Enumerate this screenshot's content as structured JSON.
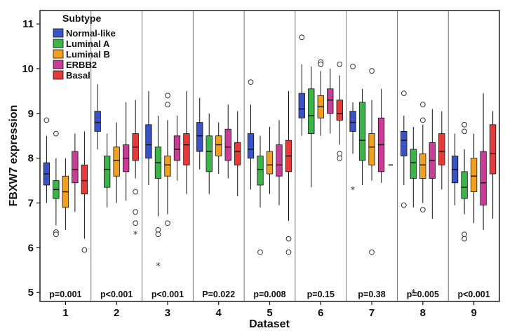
{
  "chart_data": {
    "type": "boxplot",
    "xlabel": "Dataset",
    "ylabel": "FBXW7 expression",
    "ylim": [
      4.8,
      11.3
    ],
    "yticks": [
      "5",
      "6",
      "7",
      "8",
      "9",
      "10",
      "11"
    ],
    "grid": false,
    "legend": {
      "title": "Subtype",
      "placement": "top-left",
      "entries": [
        "Normal-like",
        "Luminal A",
        "Luminal B",
        "ERBB2",
        "Basal"
      ]
    },
    "colors": [
      "#3b52c4",
      "#3db44a",
      "#f0a020",
      "#c83e96",
      "#e63a3a"
    ],
    "datasets": [
      {
        "label": "1",
        "pvalue": "p=0.001",
        "boxes": [
          {
            "q1": 7.4,
            "median": 7.65,
            "q3": 7.9,
            "wlo": 7.0,
            "whi": 8.5,
            "outliers": [
              8.85
            ],
            "extremes": []
          },
          {
            "q1": 7.1,
            "median": 7.3,
            "q3": 7.5,
            "wlo": 6.5,
            "whi": 8.0,
            "outliers": [
              8.55,
              6.35,
              6.3
            ],
            "extremes": []
          },
          {
            "q1": 6.9,
            "median": 7.25,
            "q3": 7.6,
            "wlo": 6.4,
            "whi": 8.0,
            "outliers": [],
            "extremes": []
          },
          {
            "q1": 7.45,
            "median": 7.75,
            "q3": 8.15,
            "wlo": 6.8,
            "whi": 8.55,
            "outliers": [],
            "extremes": []
          },
          {
            "q1": 7.2,
            "median": 7.5,
            "q3": 7.85,
            "wlo": 6.2,
            "whi": 8.6,
            "outliers": [
              5.95
            ],
            "extremes": []
          }
        ]
      },
      {
        "label": "2",
        "pvalue": "p<0.001",
        "boxes": [
          {
            "q1": 8.6,
            "median": 8.8,
            "q3": 9.05,
            "wlo": 8.2,
            "whi": 9.65,
            "outliers": [],
            "extremes": []
          },
          {
            "q1": 7.35,
            "median": 7.75,
            "q3": 8.05,
            "wlo": 6.9,
            "whi": 8.55,
            "outliers": [],
            "extremes": []
          },
          {
            "q1": 7.6,
            "median": 7.95,
            "q3": 8.25,
            "wlo": 7.0,
            "whi": 8.8,
            "outliers": [],
            "extremes": []
          },
          {
            "q1": 7.7,
            "median": 8.0,
            "q3": 8.3,
            "wlo": 7.05,
            "whi": 9.25,
            "outliers": [],
            "extremes": []
          },
          {
            "q1": 7.95,
            "median": 8.25,
            "q3": 8.55,
            "wlo": 7.55,
            "whi": 9.3,
            "outliers": [
              7.25,
              6.8,
              6.55
            ],
            "extremes": [
              6.3
            ]
          }
        ]
      },
      {
        "label": "3",
        "pvalue": "p<0.001",
        "boxes": [
          {
            "q1": 8.0,
            "median": 8.3,
            "q3": 8.75,
            "wlo": 7.4,
            "whi": 9.5,
            "outliers": [],
            "extremes": []
          },
          {
            "q1": 7.55,
            "median": 7.9,
            "q3": 8.25,
            "wlo": 6.7,
            "whi": 8.95,
            "outliers": [
              6.4,
              6.3
            ],
            "extremes": [
              5.6
            ]
          },
          {
            "q1": 7.6,
            "median": 7.85,
            "q3": 8.05,
            "wlo": 6.75,
            "whi": 8.85,
            "outliers": [
              9.4,
              9.2,
              6.55
            ],
            "extremes": []
          },
          {
            "q1": 7.95,
            "median": 8.2,
            "q3": 8.5,
            "wlo": 7.5,
            "whi": 8.95,
            "outliers": [],
            "extremes": []
          },
          {
            "q1": 7.85,
            "median": 8.3,
            "q3": 8.55,
            "wlo": 7.2,
            "whi": 9.5,
            "outliers": [],
            "extremes": []
          }
        ]
      },
      {
        "label": "4",
        "pvalue": "P=0.022",
        "boxes": [
          {
            "q1": 8.15,
            "median": 8.5,
            "q3": 8.8,
            "wlo": 7.75,
            "whi": 9.35,
            "outliers": [],
            "extremes": []
          },
          {
            "q1": 7.7,
            "median": 8.15,
            "q3": 8.5,
            "wlo": 7.2,
            "whi": 9.0,
            "outliers": [],
            "extremes": []
          },
          {
            "q1": 8.05,
            "median": 8.3,
            "q3": 8.5,
            "wlo": 7.65,
            "whi": 8.8,
            "outliers": [],
            "extremes": []
          },
          {
            "q1": 7.95,
            "median": 8.25,
            "q3": 8.65,
            "wlo": 7.55,
            "whi": 9.2,
            "outliers": [],
            "extremes": []
          },
          {
            "q1": 7.85,
            "median": 8.15,
            "q3": 8.35,
            "wlo": 7.15,
            "whi": 9.05,
            "outliers": [],
            "extremes": []
          }
        ]
      },
      {
        "label": "5",
        "pvalue": "p=0.008",
        "boxes": [
          {
            "q1": 8.0,
            "median": 8.2,
            "q3": 8.55,
            "wlo": 7.3,
            "whi": 9.2,
            "outliers": [
              9.7
            ],
            "extremes": []
          },
          {
            "q1": 7.4,
            "median": 7.75,
            "q3": 8.05,
            "wlo": 6.9,
            "whi": 8.5,
            "outliers": [
              5.9
            ],
            "extremes": []
          },
          {
            "q1": 7.65,
            "median": 7.85,
            "q3": 8.15,
            "wlo": 7.2,
            "whi": 8.7,
            "outliers": [],
            "extremes": []
          },
          {
            "q1": 7.6,
            "median": 7.85,
            "q3": 8.3,
            "wlo": 6.95,
            "whi": 8.85,
            "outliers": [],
            "extremes": []
          },
          {
            "q1": 7.7,
            "median": 8.05,
            "q3": 8.4,
            "wlo": 6.6,
            "whi": 9.5,
            "outliers": [
              6.2,
              5.9
            ],
            "extremes": []
          }
        ]
      },
      {
        "label": "6",
        "pvalue": "p=0.15",
        "boxes": [
          {
            "q1": 8.9,
            "median": 9.1,
            "q3": 9.45,
            "wlo": 8.5,
            "whi": 10.1,
            "outliers": [
              10.7
            ],
            "extremes": []
          },
          {
            "q1": 8.55,
            "median": 8.95,
            "q3": 9.55,
            "wlo": 7.35,
            "whi": 10.05,
            "outliers": [],
            "extremes": []
          },
          {
            "q1": 8.9,
            "median": 9.15,
            "q3": 9.4,
            "wlo": 8.5,
            "whi": 9.95,
            "outliers": [
              10.15,
              10.1
            ],
            "extremes": []
          },
          {
            "q1": 9.0,
            "median": 9.3,
            "q3": 9.55,
            "wlo": 8.55,
            "whi": 10.0,
            "outliers": [],
            "extremes": []
          },
          {
            "q1": 8.85,
            "median": 9.0,
            "q3": 9.3,
            "wlo": 8.3,
            "whi": 9.85,
            "outliers": [
              10.1,
              8.1,
              8.0
            ],
            "extremes": []
          }
        ]
      },
      {
        "label": "7",
        "pvalue": "p=0.38",
        "boxes": [
          {
            "q1": 8.6,
            "median": 8.8,
            "q3": 9.05,
            "wlo": 8.1,
            "whi": 9.25,
            "outliers": [
              10.05
            ],
            "extremes": [
              7.3
            ]
          },
          {
            "q1": 7.95,
            "median": 8.4,
            "q3": 9.25,
            "wlo": 7.4,
            "whi": 9.55,
            "outliers": [],
            "extremes": []
          },
          {
            "q1": 7.85,
            "median": 8.25,
            "q3": 8.55,
            "wlo": 7.5,
            "whi": 9.3,
            "outliers": [
              9.95,
              5.9
            ],
            "extremes": []
          },
          {
            "q1": 7.7,
            "median": 8.3,
            "q3": 8.9,
            "wlo": 7.45,
            "whi": 9.55,
            "outliers": [],
            "extremes": []
          },
          {
            "q1": 7.85,
            "median": 7.85,
            "q3": 7.85,
            "wlo": 7.85,
            "whi": 7.85,
            "outliers": [],
            "extremes": []
          }
        ]
      },
      {
        "label": "8",
        "pvalue": "p=0.005",
        "boxes": [
          {
            "q1": 8.05,
            "median": 8.4,
            "q3": 8.6,
            "wlo": 7.4,
            "whi": 8.95,
            "outliers": [
              9.45,
              6.95
            ],
            "extremes": []
          },
          {
            "q1": 7.55,
            "median": 7.9,
            "q3": 8.2,
            "wlo": 6.9,
            "whi": 8.7,
            "outliers": [],
            "extremes": [
              5.0
            ]
          },
          {
            "q1": 7.55,
            "median": 7.85,
            "q3": 8.1,
            "wlo": 7.0,
            "whi": 8.75,
            "outliers": [
              9.2,
              8.85,
              6.85
            ],
            "extremes": []
          },
          {
            "q1": 7.55,
            "median": 7.95,
            "q3": 8.35,
            "wlo": 6.65,
            "whi": 9.1,
            "outliers": [],
            "extremes": []
          },
          {
            "q1": 7.85,
            "median": 8.15,
            "q3": 8.55,
            "wlo": 7.3,
            "whi": 9.05,
            "outliers": [],
            "extremes": []
          }
        ]
      },
      {
        "label": "9",
        "pvalue": "p<0.001",
        "boxes": [
          {
            "q1": 7.45,
            "median": 7.75,
            "q3": 8.05,
            "wlo": 6.95,
            "whi": 8.55,
            "outliers": [],
            "extremes": []
          },
          {
            "q1": 7.1,
            "median": 7.35,
            "q3": 7.7,
            "wlo": 6.75,
            "whi": 8.2,
            "outliers": [
              8.75,
              8.6,
              6.3,
              6.2
            ],
            "extremes": []
          },
          {
            "q1": 7.25,
            "median": 7.6,
            "q3": 8.0,
            "wlo": 6.55,
            "whi": 8.55,
            "outliers": [],
            "extremes": []
          },
          {
            "q1": 6.95,
            "median": 7.45,
            "q3": 8.15,
            "wlo": 6.4,
            "whi": 9.45,
            "outliers": [],
            "extremes": []
          },
          {
            "q1": 7.65,
            "median": 8.1,
            "q3": 8.75,
            "wlo": 6.65,
            "whi": 9.05,
            "outliers": [],
            "extremes": []
          }
        ]
      }
    ]
  }
}
